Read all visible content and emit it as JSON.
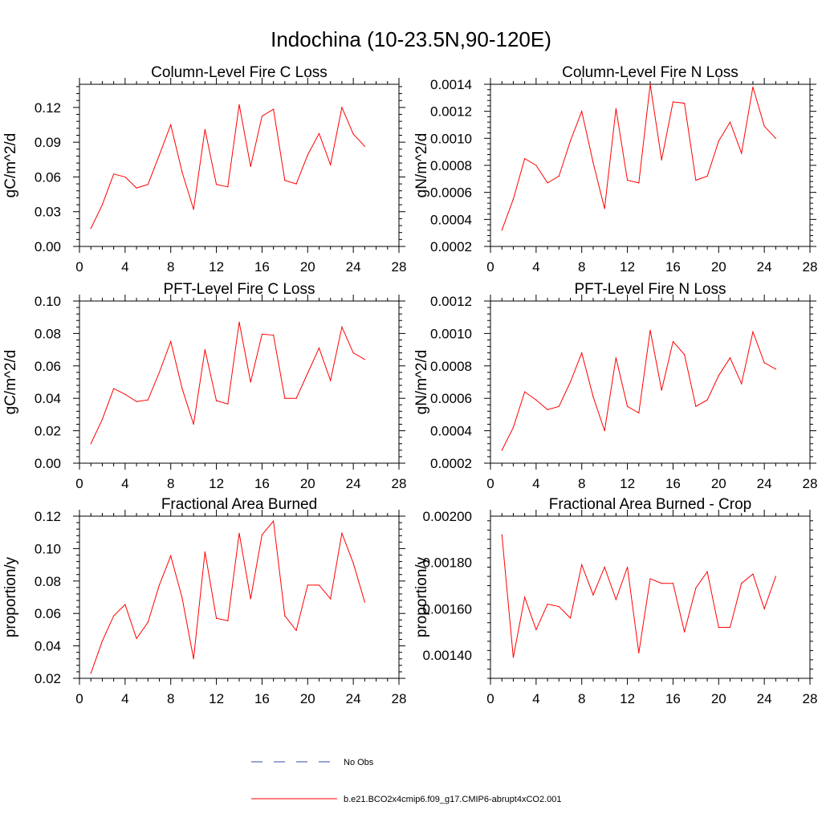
{
  "figure_title": "Indochina (10-23.5N,90-120E)",
  "series_color": "#ff0000",
  "obs_color": "#3344aa",
  "legend": {
    "obs_label": "No Obs",
    "model_label": "b.e21.BCO2x4cmip6.f09_g17.CMIP6-abrupt4xCO2.001"
  },
  "chart_data": [
    {
      "type": "line",
      "title": "Column-Level Fire C Loss",
      "ylabel": "gC/m^2/d",
      "xlim": [
        0,
        28
      ],
      "xticks": [
        "0",
        "4",
        "8",
        "12",
        "16",
        "20",
        "24",
        "28"
      ],
      "ylim": [
        0,
        0.14
      ],
      "yticks": [
        "0.00",
        "0.03",
        "0.06",
        "0.09",
        "0.12"
      ],
      "x": [
        1,
        2,
        3,
        4,
        5,
        6,
        7,
        8,
        9,
        10,
        11,
        12,
        13,
        14,
        15,
        16,
        17,
        18,
        19,
        20,
        21,
        22,
        23,
        24,
        25
      ],
      "values": [
        0.0155,
        0.036,
        0.0625,
        0.06,
        0.0505,
        0.0535,
        0.079,
        0.105,
        0.064,
        0.032,
        0.101,
        0.0535,
        0.0515,
        0.1225,
        0.069,
        0.1125,
        0.1185,
        0.057,
        0.054,
        0.079,
        0.0975,
        0.0705,
        0.12,
        0.097,
        0.0865
      ]
    },
    {
      "type": "line",
      "title": "Column-Level Fire N Loss",
      "ylabel": "gN/m^2/d",
      "xlim": [
        0,
        28
      ],
      "xticks": [
        "0",
        "4",
        "8",
        "12",
        "16",
        "20",
        "24",
        "28"
      ],
      "ylim": [
        0.0002,
        0.0014
      ],
      "yticks": [
        "0.0002",
        "0.0004",
        "0.0006",
        "0.0008",
        "0.0010",
        "0.0012",
        "0.0014"
      ],
      "x": [
        1,
        2,
        3,
        4,
        5,
        6,
        7,
        8,
        9,
        10,
        11,
        12,
        13,
        14,
        15,
        16,
        17,
        18,
        19,
        20,
        21,
        22,
        23,
        24,
        25
      ],
      "values": [
        0.00032,
        0.00055,
        0.00085,
        0.0008,
        0.00067,
        0.00072,
        0.00098,
        0.0012,
        0.00082,
        0.00048,
        0.00122,
        0.00069,
        0.00067,
        0.0014,
        0.00084,
        0.00127,
        0.00126,
        0.00069,
        0.00072,
        0.00098,
        0.00112,
        0.00089,
        0.00138,
        0.00109,
        0.001
      ]
    },
    {
      "type": "line",
      "title": "PFT-Level Fire C Loss",
      "ylabel": "gC/m^2/d",
      "xlim": [
        0,
        28
      ],
      "xticks": [
        "0",
        "4",
        "8",
        "12",
        "16",
        "20",
        "24",
        "28"
      ],
      "ylim": [
        0,
        0.1
      ],
      "yticks": [
        "0.00",
        "0.02",
        "0.04",
        "0.06",
        "0.08",
        "0.10"
      ],
      "x": [
        1,
        2,
        3,
        4,
        5,
        6,
        7,
        8,
        9,
        10,
        11,
        12,
        13,
        14,
        15,
        16,
        17,
        18,
        19,
        20,
        21,
        22,
        23,
        24,
        25
      ],
      "values": [
        0.012,
        0.027,
        0.046,
        0.0425,
        0.038,
        0.039,
        0.056,
        0.075,
        0.046,
        0.024,
        0.07,
        0.0385,
        0.0365,
        0.087,
        0.05,
        0.0795,
        0.079,
        0.04,
        0.04,
        0.0555,
        0.071,
        0.051,
        0.084,
        0.068,
        0.064
      ]
    },
    {
      "type": "line",
      "title": "PFT-Level Fire N Loss",
      "ylabel": "gN/m^2/d",
      "xlim": [
        0,
        28
      ],
      "xticks": [
        "0",
        "4",
        "8",
        "12",
        "16",
        "20",
        "24",
        "28"
      ],
      "ylim": [
        0.0002,
        0.0012
      ],
      "yticks": [
        "0.0002",
        "0.0004",
        "0.0006",
        "0.0008",
        "0.0010",
        "0.0012"
      ],
      "x": [
        1,
        2,
        3,
        4,
        5,
        6,
        7,
        8,
        9,
        10,
        11,
        12,
        13,
        14,
        15,
        16,
        17,
        18,
        19,
        20,
        21,
        22,
        23,
        24,
        25
      ],
      "values": [
        0.00028,
        0.00042,
        0.00064,
        0.00059,
        0.00053,
        0.00055,
        0.0007,
        0.00088,
        0.00061,
        0.0004,
        0.00085,
        0.00055,
        0.00051,
        0.00102,
        0.00065,
        0.00095,
        0.00087,
        0.00055,
        0.00059,
        0.00074,
        0.00085,
        0.00069,
        0.00101,
        0.00082,
        0.00078
      ]
    },
    {
      "type": "line",
      "title": "Fractional Area Burned",
      "ylabel": "proportion/y",
      "xlim": [
        0,
        28
      ],
      "xticks": [
        "0",
        "4",
        "8",
        "12",
        "16",
        "20",
        "24",
        "28"
      ],
      "ylim": [
        0.02,
        0.12
      ],
      "yticks": [
        "0.02",
        "0.04",
        "0.06",
        "0.08",
        "0.10",
        "0.12"
      ],
      "x": [
        1,
        2,
        3,
        4,
        5,
        6,
        7,
        8,
        9,
        10,
        11,
        12,
        13,
        14,
        15,
        16,
        17,
        18,
        19,
        20,
        21,
        22,
        23,
        24,
        25
      ],
      "values": [
        0.023,
        0.043,
        0.0585,
        0.0655,
        0.0445,
        0.0545,
        0.0775,
        0.0955,
        0.0695,
        0.032,
        0.098,
        0.057,
        0.0555,
        0.1095,
        0.069,
        0.1085,
        0.117,
        0.0585,
        0.0495,
        0.0775,
        0.0775,
        0.069,
        0.1095,
        0.091,
        0.067
      ]
    },
    {
      "type": "line",
      "title": "Fractional Area Burned - Crop",
      "ylabel": "proportion/y",
      "xlim": [
        0,
        28
      ],
      "xticks": [
        "0",
        "4",
        "8",
        "12",
        "16",
        "20",
        "24",
        "28"
      ],
      "ylim": [
        0.0013,
        0.002
      ],
      "yticks": [
        "0.00140",
        "0.00160",
        "0.00180",
        "0.00200"
      ],
      "x": [
        1,
        2,
        3,
        4,
        5,
        6,
        7,
        8,
        9,
        10,
        11,
        12,
        13,
        14,
        15,
        16,
        17,
        18,
        19,
        20,
        21,
        22,
        23,
        24,
        25
      ],
      "values": [
        0.00192,
        0.00139,
        0.00165,
        0.00151,
        0.00162,
        0.00161,
        0.00156,
        0.00179,
        0.00166,
        0.00178,
        0.00164,
        0.00178,
        0.00141,
        0.00173,
        0.00171,
        0.00171,
        0.0015,
        0.00169,
        0.00176,
        0.00152,
        0.00152,
        0.00171,
        0.00175,
        0.0016,
        0.00174
      ]
    }
  ]
}
